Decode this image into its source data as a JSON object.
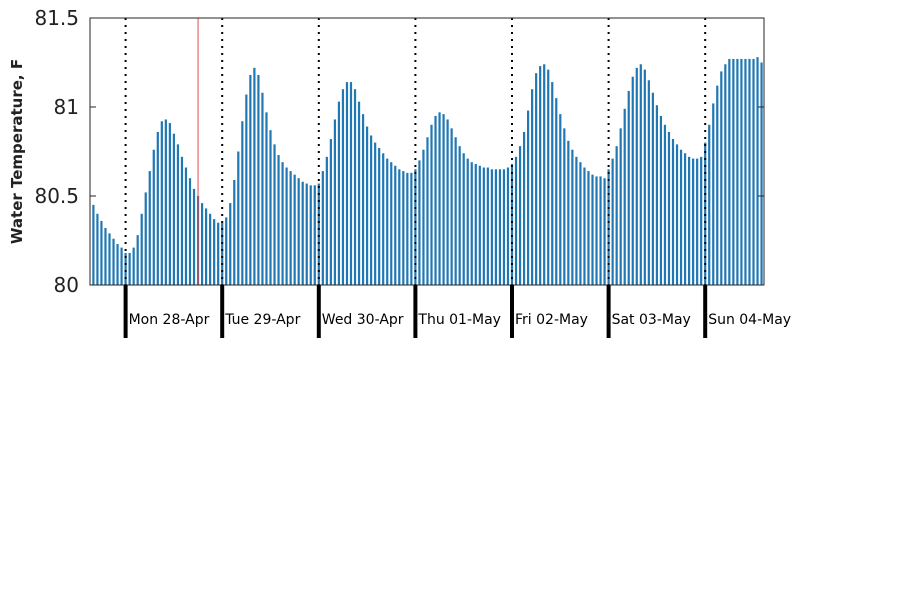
{
  "chart_data": {
    "type": "bar",
    "ylabel": "Water Temperature, F",
    "xlabel": "",
    "ylim": [
      80,
      81.5
    ],
    "yticks": [
      80,
      80.5,
      81,
      81.5
    ],
    "ytick_labels": [
      "80",
      "80.5",
      "81",
      "81.5"
    ],
    "bar_color": "#1f77b4",
    "current_time_marker_color": "#e8474b",
    "day_labels": [
      "Mon 28-Apr",
      "Tue 29-Apr",
      "Wed 30-Apr",
      "Thu 01-May",
      "Fri 02-May",
      "Sat 03-May",
      "Sun 04-May"
    ],
    "hours_before_first_midnight": 9,
    "current_time_marker_hour": 18,
    "series": [
      {
        "values": [
          80.5,
          80.45,
          80.4,
          80.36,
          80.32,
          80.29,
          80.26,
          80.23,
          80.21,
          80.18,
          80.18,
          80.21,
          80.28,
          80.4,
          80.52,
          80.64,
          80.76,
          80.86,
          80.92,
          80.93,
          80.91,
          80.85,
          80.79,
          80.72,
          80.66,
          80.6,
          80.54,
          80.5,
          80.46,
          80.43,
          80.4,
          80.37,
          80.35,
          80.35,
          80.38,
          80.46,
          80.59,
          80.75,
          80.92,
          81.07,
          81.18,
          81.22,
          81.18,
          81.08,
          80.97,
          80.87,
          80.79,
          80.73,
          80.69,
          80.66,
          80.64,
          80.62,
          80.6,
          80.58,
          80.57,
          80.56,
          80.56,
          80.57,
          80.64,
          80.72,
          80.82,
          80.93,
          81.03,
          81.1,
          81.14,
          81.14,
          81.1,
          81.03,
          80.96,
          80.89,
          80.84,
          80.8,
          80.77,
          80.74,
          80.71,
          80.69,
          80.67,
          80.65,
          80.64,
          80.63,
          80.63,
          80.65,
          80.7,
          80.76,
          80.83,
          80.9,
          80.95,
          80.97,
          80.96,
          80.93,
          80.88,
          80.83,
          80.78,
          80.74,
          80.71,
          80.69,
          80.68,
          80.67,
          80.66,
          80.66,
          80.65,
          80.65,
          80.65,
          80.65,
          80.66,
          80.68,
          80.72,
          80.78,
          80.86,
          80.98,
          81.1,
          81.19,
          81.23,
          81.24,
          81.21,
          81.14,
          81.05,
          80.96,
          80.88,
          80.81,
          80.76,
          80.72,
          80.69,
          80.66,
          80.64,
          80.62,
          80.61,
          80.61,
          80.6,
          80.65,
          80.71,
          80.78,
          80.88,
          80.99,
          81.09,
          81.17,
          81.22,
          81.24,
          81.21,
          81.15,
          81.08,
          81.01,
          80.95,
          80.9,
          80.86,
          80.82,
          80.79,
          80.76,
          80.74,
          80.72,
          80.71,
          80.71,
          80.72,
          80.8,
          80.9,
          81.02,
          81.12,
          81.2,
          81.24,
          81.27,
          81.27,
          81.27,
          81.27,
          81.27,
          81.27,
          81.27,
          81.28,
          81.25
        ]
      }
    ]
  }
}
